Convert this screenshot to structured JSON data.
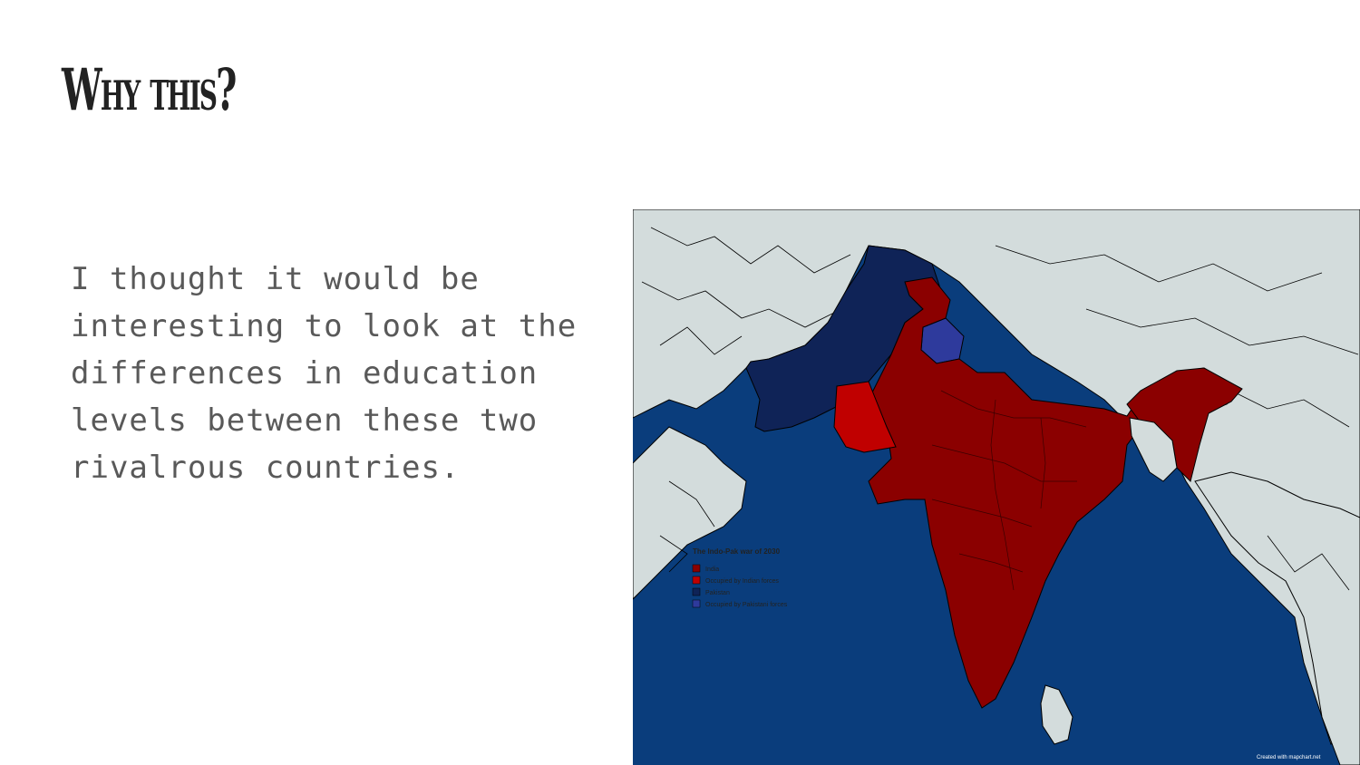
{
  "slide": {
    "title": "Why this?",
    "body": "I thought it would be interesting to look at the differences in education levels between these two rivalrous countries."
  },
  "map": {
    "legend": {
      "title": "The Indo-Pak war of 2030",
      "items": [
        {
          "label": "India",
          "color": "#8b0000"
        },
        {
          "label": "Occupied by Indian forces",
          "color": "#c00000"
        },
        {
          "label": "Pakistan",
          "color": "#0f2357"
        },
        {
          "label": "Occupied by Pakistani forces",
          "color": "#2e3a9c"
        }
      ]
    },
    "credit": "Created with mapchart.net",
    "colors": {
      "ocean": "#0a3d7c",
      "land": "#d3dcdc",
      "border": "#000000"
    }
  }
}
